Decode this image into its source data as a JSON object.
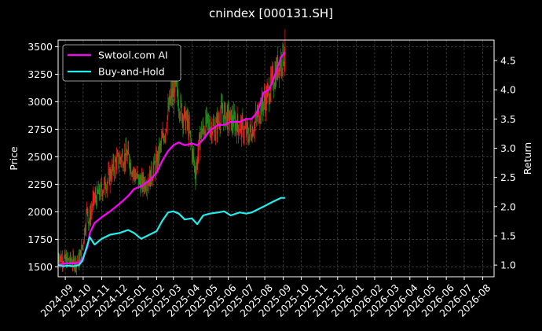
{
  "chart_data": {
    "type": "line",
    "title": "cnindex [000131.SH]",
    "ylabel_left": "Price",
    "ylabel_right": "Return",
    "x_ticks": [
      "2024-09",
      "2024-10",
      "2024-11",
      "2024-12",
      "2025-01",
      "2025-02",
      "2025-03",
      "2025-04",
      "2025-05",
      "2025-06",
      "2025-07",
      "2025-08",
      "2025-09",
      "2025-10",
      "2025-11",
      "2025-12",
      "2026-01",
      "2026-02",
      "2026-03",
      "2026-04",
      "2026-05",
      "2026-06",
      "2026-07",
      "2026-08"
    ],
    "xlim": [
      "2024-08-20",
      "2026-08-20"
    ],
    "ylim_left": [
      1410,
      3560
    ],
    "yticks_left": [
      1500,
      1750,
      2000,
      2250,
      2500,
      2750,
      3000,
      3250,
      3500
    ],
    "ylim_right": [
      0.8,
      4.85
    ],
    "yticks_right": [
      1.0,
      1.5,
      2.0,
      2.5,
      3.0,
      3.5,
      4.0,
      4.5
    ],
    "grid": true,
    "legend_position": "upper-left",
    "price_series": {
      "name": "price",
      "colors": {
        "up": "#ff2020",
        "down": "#17a017"
      },
      "x": [
        "2024-08-20",
        "2024-09-01",
        "2024-09-15",
        "2024-09-24",
        "2024-09-30",
        "2024-10-08",
        "2024-10-10",
        "2024-10-18",
        "2024-11-01",
        "2024-11-12",
        "2024-11-25",
        "2024-12-05",
        "2024-12-15",
        "2024-12-25",
        "2025-01-06",
        "2025-01-20",
        "2025-02-01",
        "2025-02-15",
        "2025-02-25",
        "2025-03-05",
        "2025-03-15",
        "2025-03-25",
        "2025-04-07",
        "2025-04-15",
        "2025-04-25",
        "2025-05-10",
        "2025-05-20",
        "2025-06-01",
        "2025-06-15",
        "2025-06-25",
        "2025-07-05",
        "2025-07-15",
        "2025-07-25",
        "2025-08-05",
        "2025-08-15",
        "2025-08-25",
        "2025-09-04"
      ],
      "values": [
        1600,
        1560,
        1545,
        1560,
        1700,
        2050,
        1900,
        2100,
        2200,
        2300,
        2450,
        2500,
        2500,
        2350,
        2250,
        2300,
        2450,
        2750,
        3050,
        3100,
        2900,
        2800,
        2350,
        2700,
        2800,
        2750,
        2900,
        2850,
        2800,
        2750,
        2700,
        2800,
        2950,
        3050,
        3200,
        3350,
        3450
      ]
    },
    "series": [
      {
        "name": "Swtool.com AI",
        "color": "#ff00ff",
        "x": [
          "2024-08-20",
          "2024-08-28",
          "2024-09-05",
          "2024-09-15",
          "2024-09-24",
          "2024-09-30",
          "2024-10-08",
          "2024-10-12",
          "2024-10-20",
          "2024-11-01",
          "2024-11-15",
          "2024-12-01",
          "2024-12-15",
          "2024-12-25",
          "2025-01-06",
          "2025-01-20",
          "2025-02-01",
          "2025-02-10",
          "2025-02-20",
          "2025-03-01",
          "2025-03-10",
          "2025-03-20",
          "2025-04-01",
          "2025-04-10",
          "2025-04-20",
          "2025-05-01",
          "2025-05-15",
          "2025-05-25",
          "2025-06-05",
          "2025-06-20",
          "2025-07-01",
          "2025-07-10",
          "2025-07-20",
          "2025-07-30",
          "2025-08-08",
          "2025-08-18",
          "2025-08-28",
          "2025-09-04"
        ],
        "values": [
          1.0,
          1.02,
          1.03,
          1.03,
          1.04,
          1.12,
          1.3,
          1.55,
          1.72,
          1.82,
          1.92,
          2.05,
          2.18,
          2.3,
          2.35,
          2.45,
          2.58,
          2.78,
          2.95,
          3.05,
          3.1,
          3.05,
          3.08,
          3.05,
          3.15,
          3.3,
          3.4,
          3.4,
          3.45,
          3.45,
          3.5,
          3.5,
          3.62,
          3.95,
          4.0,
          4.25,
          4.55,
          4.65
        ]
      },
      {
        "name": "Buy-and-Hold",
        "color": "#22eeee",
        "x": [
          "2024-08-20",
          "2024-08-28",
          "2024-09-05",
          "2024-09-15",
          "2024-09-24",
          "2024-09-30",
          "2024-10-08",
          "2024-10-12",
          "2024-10-20",
          "2024-11-01",
          "2024-11-15",
          "2024-12-01",
          "2024-12-15",
          "2024-12-25",
          "2025-01-06",
          "2025-01-20",
          "2025-02-01",
          "2025-02-10",
          "2025-02-20",
          "2025-03-01",
          "2025-03-10",
          "2025-03-20",
          "2025-04-01",
          "2025-04-10",
          "2025-04-20",
          "2025-05-01",
          "2025-05-15",
          "2025-05-25",
          "2025-06-05",
          "2025-06-20",
          "2025-07-01",
          "2025-07-10",
          "2025-07-20",
          "2025-07-30",
          "2025-08-08",
          "2025-08-18",
          "2025-08-28",
          "2025-09-04"
        ],
        "values": [
          1.0,
          0.98,
          0.99,
          0.98,
          1.0,
          1.08,
          1.35,
          1.48,
          1.35,
          1.45,
          1.52,
          1.55,
          1.6,
          1.55,
          1.45,
          1.52,
          1.58,
          1.75,
          1.9,
          1.92,
          1.88,
          1.78,
          1.8,
          1.7,
          1.85,
          1.88,
          1.9,
          1.92,
          1.85,
          1.9,
          1.88,
          1.9,
          1.95,
          2.0,
          2.05,
          2.1,
          2.15,
          2.15
        ]
      }
    ]
  }
}
